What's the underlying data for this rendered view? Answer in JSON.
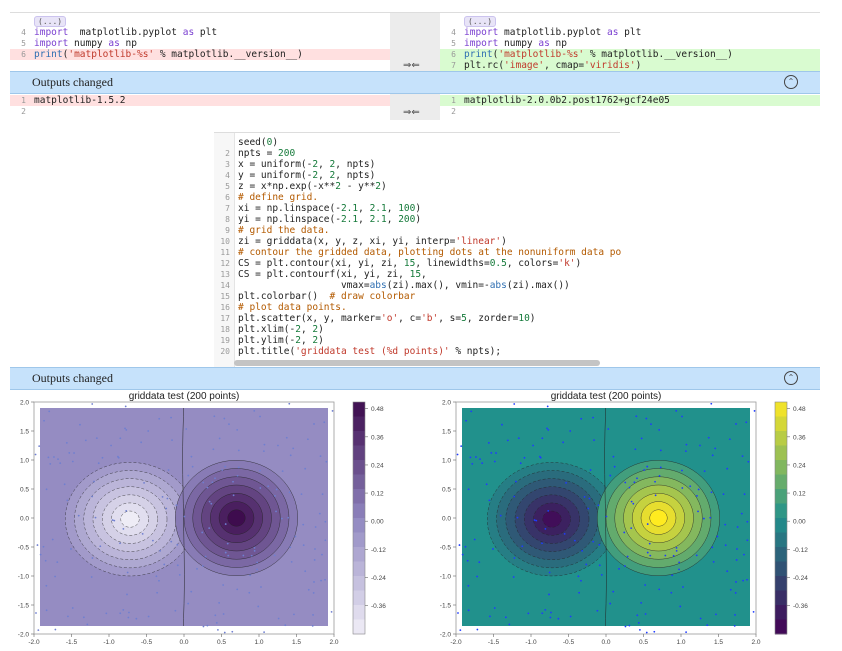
{
  "diff1": {
    "ellipsis": "(...)",
    "left": [
      {
        "n": "4",
        "parts": [
          [
            "kw",
            "import"
          ],
          [
            "",
            "  matplotlib.pyplot "
          ],
          [
            "kw",
            "as"
          ],
          [
            "",
            " plt"
          ]
        ]
      },
      {
        "n": "5",
        "parts": [
          [
            "kw",
            "import"
          ],
          [
            "",
            " numpy "
          ],
          [
            "kw",
            "as"
          ],
          [
            "",
            " np"
          ]
        ]
      },
      {
        "n": "6",
        "parts": [
          [
            "fn",
            "print"
          ],
          [
            "",
            "("
          ],
          [
            "str",
            "'matplotlib-%s'"
          ],
          [
            "",
            " % matplotlib.__version__)"
          ]
        ]
      }
    ],
    "right": [
      {
        "n": "4",
        "parts": [
          [
            "kw",
            "import"
          ],
          [
            "",
            " matplotlib.pyplot "
          ],
          [
            "kw",
            "as"
          ],
          [
            "",
            " plt"
          ]
        ]
      },
      {
        "n": "5",
        "parts": [
          [
            "kw",
            "import"
          ],
          [
            "",
            " numpy "
          ],
          [
            "kw",
            "as"
          ],
          [
            "",
            " np"
          ]
        ]
      },
      {
        "n": "6",
        "parts": [
          [
            "fn",
            "print"
          ],
          [
            "",
            "("
          ],
          [
            "str",
            "'matplotlib-%s'"
          ],
          [
            "",
            " % matplotlib.__version__)"
          ]
        ]
      },
      {
        "n": "7",
        "parts": [
          [
            "",
            "plt.rc("
          ],
          [
            "str",
            "'image'"
          ],
          [
            "",
            ", cmap="
          ],
          [
            "str",
            "'viridis'"
          ],
          [
            "",
            ")"
          ]
        ]
      }
    ],
    "arrows": "⇒⇐"
  },
  "outputs_bar_label": "Outputs changed",
  "collapse_glyph": "⌃",
  "diff2": {
    "left": [
      {
        "n": "1",
        "text": "matplotlib-1.5.2"
      },
      {
        "n": "2",
        "text": ""
      }
    ],
    "right": [
      {
        "n": "1",
        "text": "matplotlib-2.0.0b2.post1762+gcf24e05"
      },
      {
        "n": "2",
        "text": ""
      }
    ],
    "arrows": "⇒⇐"
  },
  "source": [
    {
      "n": "",
      "parts": [
        [
          "",
          "seed("
        ],
        [
          "num",
          "0"
        ],
        [
          "",
          ")"
        ]
      ]
    },
    {
      "n": "2",
      "parts": [
        [
          "",
          "npts = "
        ],
        [
          "num",
          "200"
        ]
      ]
    },
    {
      "n": "3",
      "parts": [
        [
          "",
          "x = uniform(-"
        ],
        [
          "num",
          "2"
        ],
        [
          "",
          ", "
        ],
        [
          "num",
          "2"
        ],
        [
          "",
          ", npts)"
        ]
      ]
    },
    {
      "n": "4",
      "parts": [
        [
          "",
          "y = uniform(-"
        ],
        [
          "num",
          "2"
        ],
        [
          "",
          ", "
        ],
        [
          "num",
          "2"
        ],
        [
          "",
          ", npts)"
        ]
      ]
    },
    {
      "n": "5",
      "parts": [
        [
          "",
          "z = x*np.exp(-x**"
        ],
        [
          "num",
          "2"
        ],
        [
          "",
          " - y**"
        ],
        [
          "num",
          "2"
        ],
        [
          "",
          ")"
        ]
      ]
    },
    {
      "n": "6",
      "parts": [
        [
          "cm",
          "# define grid."
        ]
      ]
    },
    {
      "n": "7",
      "parts": [
        [
          "",
          "xi = np.linspace(-"
        ],
        [
          "num",
          "2.1"
        ],
        [
          "",
          ", "
        ],
        [
          "num",
          "2.1"
        ],
        [
          "",
          ", "
        ],
        [
          "num",
          "100"
        ],
        [
          "",
          ")"
        ]
      ]
    },
    {
      "n": "8",
      "parts": [
        [
          "",
          "yi = np.linspace(-"
        ],
        [
          "num",
          "2.1"
        ],
        [
          "",
          ", "
        ],
        [
          "num",
          "2.1"
        ],
        [
          "",
          ", "
        ],
        [
          "num",
          "200"
        ],
        [
          "",
          ")"
        ]
      ]
    },
    {
      "n": "9",
      "parts": [
        [
          "cm",
          "# grid the data."
        ]
      ]
    },
    {
      "n": "10",
      "parts": [
        [
          "",
          "zi = griddata(x, y, z, xi, yi, interp="
        ],
        [
          "str",
          "'linear'"
        ],
        [
          "",
          ")"
        ]
      ]
    },
    {
      "n": "11",
      "parts": [
        [
          "cm",
          "# contour the gridded data, plotting dots at the nonuniform data po"
        ]
      ]
    },
    {
      "n": "12",
      "parts": [
        [
          "",
          "CS = plt.contour(xi, yi, zi, "
        ],
        [
          "num",
          "15"
        ],
        [
          "",
          ", linewidths="
        ],
        [
          "num",
          "0.5"
        ],
        [
          "",
          ", colors="
        ],
        [
          "str",
          "'k'"
        ],
        [
          "",
          ")"
        ]
      ]
    },
    {
      "n": "13",
      "parts": [
        [
          "",
          "CS = plt.contourf(xi, yi, zi, "
        ],
        [
          "num",
          "15"
        ],
        [
          "",
          ","
        ]
      ]
    },
    {
      "n": "14",
      "parts": [
        [
          "",
          "                  vmax="
        ],
        [
          "fn",
          "abs"
        ],
        [
          "",
          "(zi).max(), vmin=-"
        ],
        [
          "fn",
          "abs"
        ],
        [
          "",
          "(zi).max())"
        ]
      ]
    },
    {
      "n": "15",
      "parts": [
        [
          "",
          "plt.colorbar()  "
        ],
        [
          "cm",
          "# draw colorbar"
        ]
      ]
    },
    {
      "n": "16",
      "parts": [
        [
          "cm",
          "# plot data points."
        ]
      ]
    },
    {
      "n": "17",
      "parts": [
        [
          "",
          "plt.scatter(x, y, marker="
        ],
        [
          "str",
          "'o'"
        ],
        [
          "",
          ", c="
        ],
        [
          "str",
          "'b'"
        ],
        [
          "",
          ", s="
        ],
        [
          "num",
          "5"
        ],
        [
          "",
          ", zorder="
        ],
        [
          "num",
          "10"
        ],
        [
          "",
          ")"
        ]
      ]
    },
    {
      "n": "18",
      "parts": [
        [
          "",
          "plt.xlim(-"
        ],
        [
          "num",
          "2"
        ],
        [
          "",
          ", "
        ],
        [
          "num",
          "2"
        ],
        [
          "",
          ")"
        ]
      ]
    },
    {
      "n": "19",
      "parts": [
        [
          "",
          "plt.ylim(-"
        ],
        [
          "num",
          "2"
        ],
        [
          "",
          ", "
        ],
        [
          "num",
          "2"
        ],
        [
          "",
          ")"
        ]
      ]
    },
    {
      "n": "20",
      "parts": [
        [
          "",
          "plt.title("
        ],
        [
          "str",
          "'griddata test (%d points)'"
        ],
        [
          "",
          " % npts);"
        ]
      ]
    }
  ],
  "plots": [
    {
      "title": "griddata test (200 points)",
      "cmap": "purples",
      "colors": {
        "low": "#f1eff8",
        "mid": "#8f86bf",
        "high": "#3d0b4d"
      },
      "xticks": [
        "-2.0",
        "-1.5",
        "-1.0",
        "-0.5",
        "0.0",
        "0.5",
        "1.0",
        "1.5",
        "2.0"
      ],
      "yticks": [
        "2.0",
        "1.5",
        "1.0",
        "0.5",
        "0.0",
        "-0.5",
        "-1.0",
        "-1.5",
        "-2.0"
      ],
      "cbar_ticks": [
        "0.48",
        "0.36",
        "0.24",
        "0.12",
        "0.00",
        "-0.12",
        "-0.24",
        "-0.36"
      ]
    },
    {
      "title": "griddata test (200 points)",
      "cmap": "viridis",
      "colors": {
        "low": "#440154",
        "mid": "#21918c",
        "high": "#fde725"
      },
      "xticks": [
        "-2.0",
        "-1.5",
        "-1.0",
        "-0.5",
        "0.0",
        "0.5",
        "1.0",
        "1.5",
        "2.0"
      ],
      "yticks": [
        "2.0",
        "1.5",
        "1.0",
        "0.5",
        "0.0",
        "-0.5",
        "-1.0",
        "-1.5",
        "-2.0"
      ],
      "cbar_ticks": [
        "0.48",
        "0.36",
        "0.24",
        "0.12",
        "0.00",
        "-0.12",
        "-0.24",
        "-0.36"
      ]
    }
  ]
}
